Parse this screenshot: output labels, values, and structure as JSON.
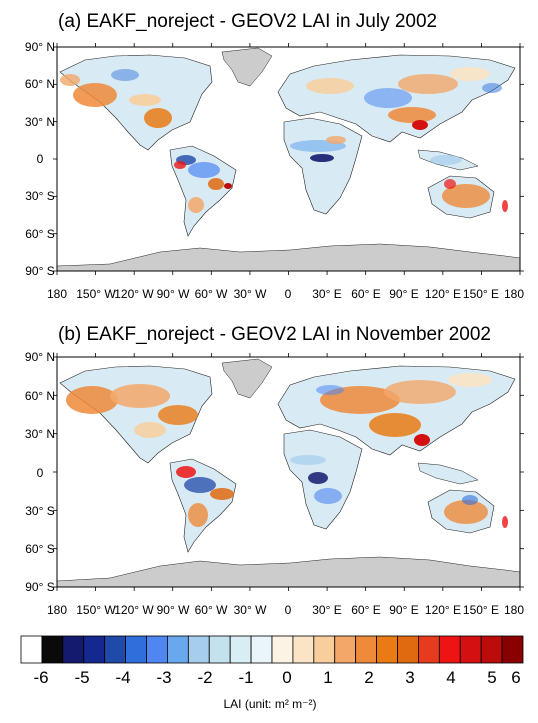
{
  "panels": [
    {
      "title": "(a) EAKF_noreject - GEOV2 LAI in July 2002",
      "lat_labels": [
        "90° N",
        "60° N",
        "30° N",
        "0",
        "30° S",
        "60° S",
        "90° S"
      ],
      "lon_labels": [
        "180",
        "150° W",
        "120° W",
        "90° W",
        "60° W",
        "30° W",
        "0",
        "30° E",
        "60° E",
        "90° E",
        "120° E",
        "150° E",
        "180"
      ]
    },
    {
      "title": "(b) EAKF_noreject - GEOV2 LAI in November 2002",
      "lat_labels": [
        "90° N",
        "60° N",
        "30° N",
        "0",
        "30° S",
        "60° S",
        "90° S"
      ],
      "lon_labels": [
        "180",
        "150° W",
        "120° W",
        "90° W",
        "60° W",
        "30° W",
        "0",
        "30° E",
        "60° E",
        "90° E",
        "120° E",
        "150° E",
        "180"
      ]
    }
  ],
  "colorbar": {
    "colors": [
      "#ffffff",
      "#0a0a0a",
      "#141a6e",
      "#14288f",
      "#1f4aa8",
      "#2f6fdc",
      "#4f86f2",
      "#6aa8ee",
      "#a7cdec",
      "#c4e2ee",
      "#d8eef4",
      "#eaf5f9",
      "#fdf3e4",
      "#fbe4c5",
      "#f8cf9c",
      "#f3a86a",
      "#ee8a3a",
      "#ea7b14",
      "#e06a0f",
      "#e63b1e",
      "#ee1414",
      "#d41010",
      "#bb0b0b",
      "#8a0000"
    ],
    "labels": [
      "-6",
      "-5",
      "-4",
      "-3",
      "-2",
      "-1",
      "0",
      "1",
      "2",
      "3",
      "4",
      "5",
      "6"
    ],
    "unit_label": "LAI (unit: m² m⁻²)"
  },
  "map_colors": {
    "land": "#d8eaf3",
    "ice": "#cccccc",
    "ocean": "#ffffff"
  }
}
